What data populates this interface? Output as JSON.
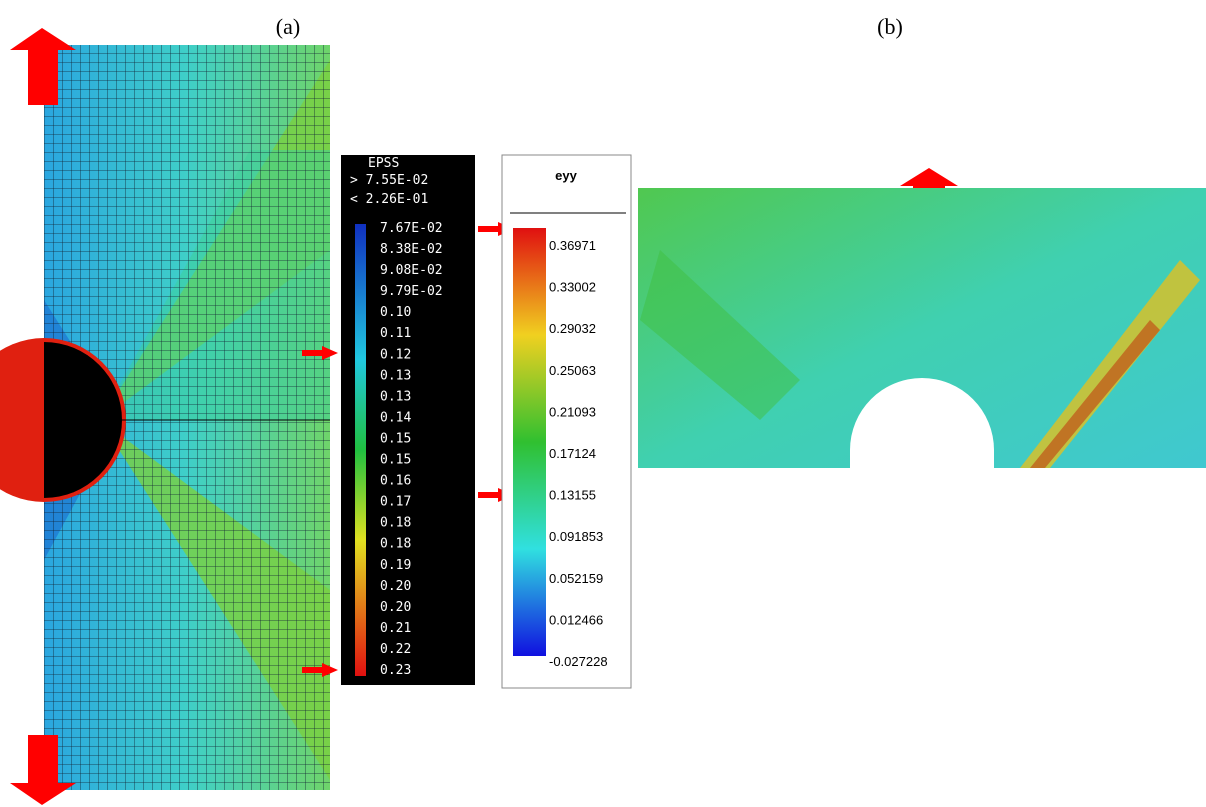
{
  "panel_a": {
    "label": "(a)",
    "legend": {
      "title": "EPSS",
      "range_lines": [
        "> 7.55E-02",
        "< 2.26E-01"
      ],
      "entries": [
        "7.67E-02",
        "8.38E-02",
        "9.08E-02",
        "9.79E-02",
        "0.10",
        "0.11",
        "0.12",
        "0.13",
        "0.13",
        "0.14",
        "0.15",
        "0.15",
        "0.16",
        "0.17",
        "0.18",
        "0.18",
        "0.19",
        "0.20",
        "0.20",
        "0.21",
        "0.22",
        "0.23"
      ]
    }
  },
  "panel_b": {
    "label": "(b)",
    "legend": {
      "title": "eyy",
      "entries": [
        "0.36971",
        "0.33002",
        "0.29032",
        "0.25063",
        "0.21093",
        "0.17124",
        "0.13155",
        "0.091853",
        "0.052159",
        "0.012466",
        "-0.027228"
      ]
    }
  }
}
